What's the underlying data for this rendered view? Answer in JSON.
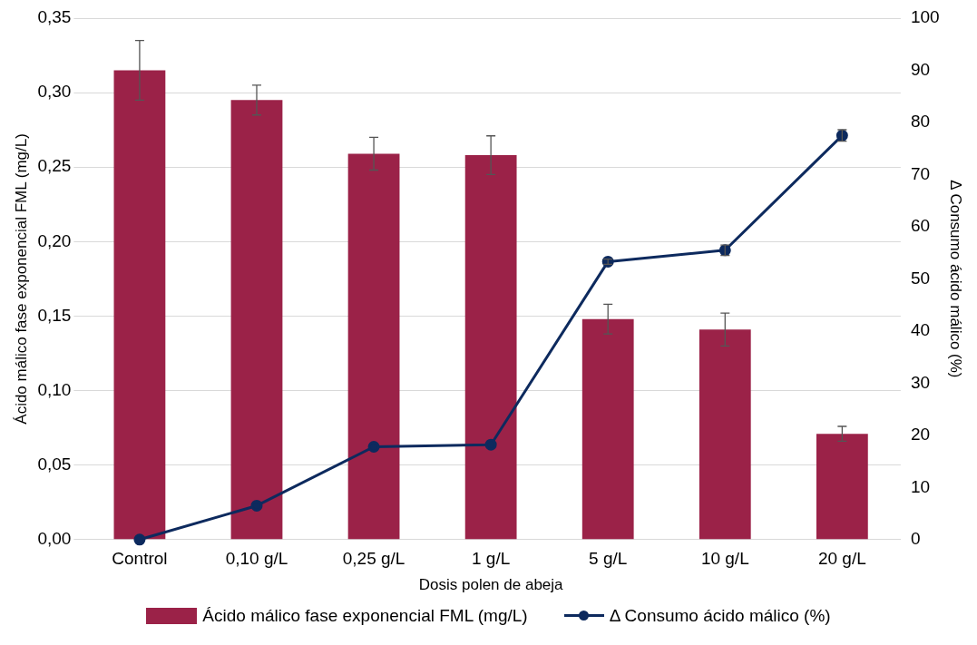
{
  "chart_data": {
    "type": "bar",
    "xlabel": "Dosis polen de abeja",
    "ylabel": "Ácido málico fase exponencial FML (mg/L)",
    "y2label": "Δ Consumo ácido málico (%)",
    "categories": [
      "Control",
      "0,10 g/L",
      "0,25 g/L",
      "1 g/L",
      "5 g/L",
      "10 g/L",
      "20 g/L"
    ],
    "series": [
      {
        "name": "Ácido málico fase exponencial FML (mg/L)",
        "color": "#9b2248",
        "values": [
          0.315,
          0.295,
          0.259,
          0.258,
          0.148,
          0.141,
          0.071
        ],
        "errors": [
          0.02,
          0.01,
          0.011,
          0.013,
          0.01,
          0.011,
          0.005
        ]
      },
      {
        "name": "Δ Consumo ácido málico (%)",
        "type": "line",
        "axis": "y2",
        "color": "#0d2a5e",
        "values": [
          0,
          6.5,
          17.8,
          18.2,
          53.3,
          55.5,
          77.5
        ],
        "errors": [
          null,
          null,
          null,
          null,
          0.5,
          1.0,
          1.1
        ]
      }
    ],
    "ylim": [
      0,
      0.35
    ],
    "yticks": [
      {
        "value": 0,
        "label": "0,00"
      },
      {
        "value": 0.05,
        "label": "0,05"
      },
      {
        "value": 0.1,
        "label": "0,10"
      },
      {
        "value": 0.15,
        "label": "0,15"
      },
      {
        "value": 0.2,
        "label": "0,20"
      },
      {
        "value": 0.25,
        "label": "0,25"
      },
      {
        "value": 0.3,
        "label": "0,30"
      },
      {
        "value": 0.35,
        "label": "0,35"
      }
    ],
    "y2lim": [
      0,
      100
    ],
    "y2ticks": [
      0,
      10,
      20,
      30,
      40,
      50,
      60,
      70,
      80,
      90,
      100
    ],
    "grid": "y",
    "legend": "bottom",
    "marker": "circle",
    "line_style": "solid"
  }
}
